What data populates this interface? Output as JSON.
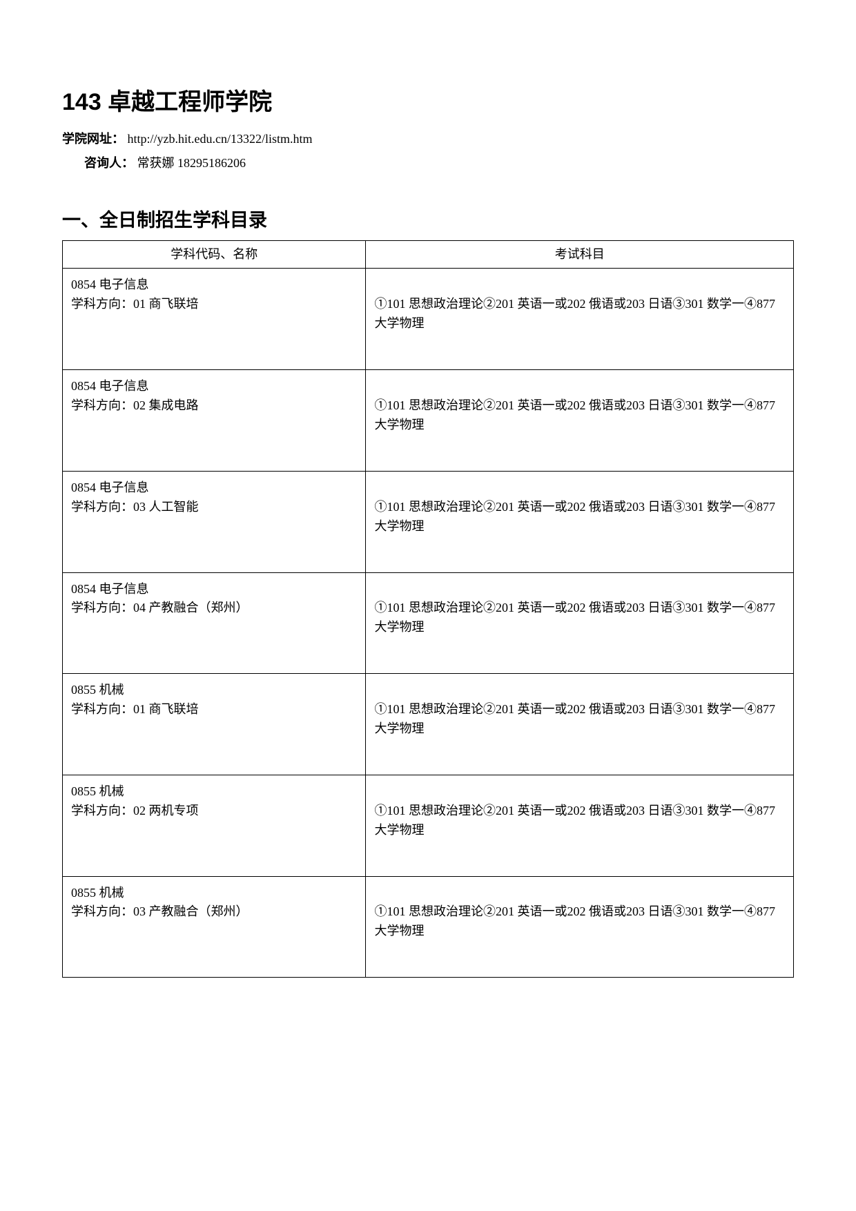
{
  "title": "143 卓越工程师学院",
  "meta": {
    "website_label": "学院网址：",
    "website_value": " http://yzb.hit.edu.cn/13322/listm.htm",
    "contact_label": "咨询人：",
    "contact_value": " 常获娜 18295186206"
  },
  "section_heading": "一、全日制招生学科目录",
  "table": {
    "headers": {
      "col1": "学科代码、名称",
      "col2": "考试科目"
    },
    "rows": [
      {
        "code": "0854 电子信息",
        "direction": "学科方向：01 商飞联培",
        "exam": "①101 思想政治理论②201 英语一或202 俄语或203 日语③301 数学一④877 大学物理"
      },
      {
        "code": "0854 电子信息",
        "direction": "学科方向：02 集成电路",
        "exam": "①101 思想政治理论②201 英语一或202 俄语或203 日语③301 数学一④877 大学物理"
      },
      {
        "code": "0854 电子信息",
        "direction": "学科方向：03 人工智能",
        "exam": "①101 思想政治理论②201 英语一或202 俄语或203 日语③301 数学一④877 大学物理"
      },
      {
        "code": "0854 电子信息",
        "direction": "学科方向：04 产教融合（郑州）",
        "exam": "①101 思想政治理论②201 英语一或202 俄语或203 日语③301 数学一④877 大学物理"
      },
      {
        "code": "0855 机械",
        "direction": "学科方向：01 商飞联培",
        "exam": "①101 思想政治理论②201 英语一或202 俄语或203 日语③301 数学一④877 大学物理"
      },
      {
        "code": "0855 机械",
        "direction": "学科方向：02 两机专项",
        "exam": "①101 思想政治理论②201 英语一或202 俄语或203 日语③301 数学一④877 大学物理"
      },
      {
        "code": "0855 机械",
        "direction": "学科方向：03 产教融合（郑州）",
        "exam": "①101 思想政治理论②201 英语一或202 俄语或203 日语③301 数学一④877 大学物理"
      }
    ]
  }
}
